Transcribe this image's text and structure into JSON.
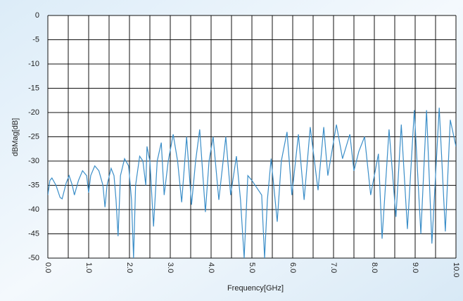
{
  "chart_data": {
    "type": "line",
    "xlabel": "Frequency[GHz]",
    "ylabel": "dBMag[dB]",
    "xlim": [
      0,
      10
    ],
    "ylim": [
      -50,
      0
    ],
    "xticks": [
      {
        "value": 0,
        "label": "0.0"
      },
      {
        "value": 1,
        "label": "1.0"
      },
      {
        "value": 2,
        "label": "2.0"
      },
      {
        "value": 3,
        "label": "3.0"
      },
      {
        "value": 4,
        "label": "4.0"
      },
      {
        "value": 5,
        "label": "5.0"
      },
      {
        "value": 6,
        "label": "6.0"
      },
      {
        "value": 7,
        "label": "7.0"
      },
      {
        "value": 8,
        "label": "8.0"
      },
      {
        "value": 9,
        "label": "9.0"
      },
      {
        "value": 10,
        "label": "10.0"
      }
    ],
    "x_minor_ticks": [
      0.5,
      1.5,
      2.5,
      3.5,
      4.5,
      5.5,
      6.5,
      7.5,
      8.5,
      9.5
    ],
    "yticks": [
      0,
      -5,
      -10,
      -15,
      -20,
      -25,
      -30,
      -35,
      -40,
      -45,
      -50
    ],
    "grid": true,
    "series": [
      {
        "color": "#3b8ec8",
        "x": [
          0,
          0.05,
          0.1,
          0.2,
          0.3,
          0.35,
          0.45,
          0.52,
          0.6,
          0.65,
          0.75,
          0.85,
          0.95,
          1.0,
          1.05,
          1.15,
          1.25,
          1.35,
          1.4,
          1.45,
          1.55,
          1.62,
          1.67,
          1.72,
          1.78,
          1.88,
          1.98,
          2.05,
          2.1,
          2.15,
          2.25,
          2.33,
          2.4,
          2.43,
          2.5,
          2.59,
          2.68,
          2.78,
          2.85,
          2.95,
          3.07,
          3.18,
          3.28,
          3.4,
          3.52,
          3.62,
          3.72,
          3.86,
          3.95,
          4.05,
          4.19,
          4.36,
          4.48,
          4.62,
          4.72,
          4.81,
          4.9,
          5.0,
          5.16,
          5.24,
          5.31,
          5.38,
          5.47,
          5.62,
          5.72,
          5.86,
          5.98,
          6.14,
          6.28,
          6.43,
          6.62,
          6.76,
          6.86,
          7.07,
          7.22,
          7.4,
          7.5,
          7.62,
          7.76,
          7.91,
          8.1,
          8.19,
          8.36,
          8.53,
          8.66,
          8.81,
          8.98,
          9.14,
          9.28,
          9.41,
          9.59,
          9.74,
          9.86,
          10.0
        ],
        "values": [
          -37,
          -34,
          -33.5,
          -35,
          -37.5,
          -37.8,
          -34.5,
          -33,
          -35,
          -37,
          -34,
          -32,
          -33,
          -36.5,
          -33,
          -31,
          -32,
          -35,
          -39.5,
          -35,
          -31.5,
          -33,
          -38,
          -45.5,
          -33,
          -29.5,
          -31,
          -38,
          -50,
          -35,
          -29,
          -30,
          -35,
          -27,
          -30,
          -43.5,
          -30,
          -26.2,
          -37,
          -30,
          -24.5,
          -30,
          -38.5,
          -25,
          -39,
          -30,
          -23.5,
          -40.5,
          -30,
          -25,
          -38,
          -25,
          -37,
          -29,
          -38,
          -50,
          -33,
          -34,
          -36,
          -37,
          -50,
          -38,
          -29.5,
          -42.5,
          -30,
          -24,
          -37,
          -24.5,
          -38,
          -23,
          -36,
          -23,
          -33,
          -22.5,
          -29.5,
          -24.5,
          -32,
          -28,
          -25,
          -37,
          -28.5,
          -46,
          -23.5,
          -41.5,
          -22.5,
          -44,
          -19.5,
          -45,
          -19.5,
          -47,
          -19,
          -44.5,
          -21.5,
          -27
        ]
      }
    ]
  }
}
